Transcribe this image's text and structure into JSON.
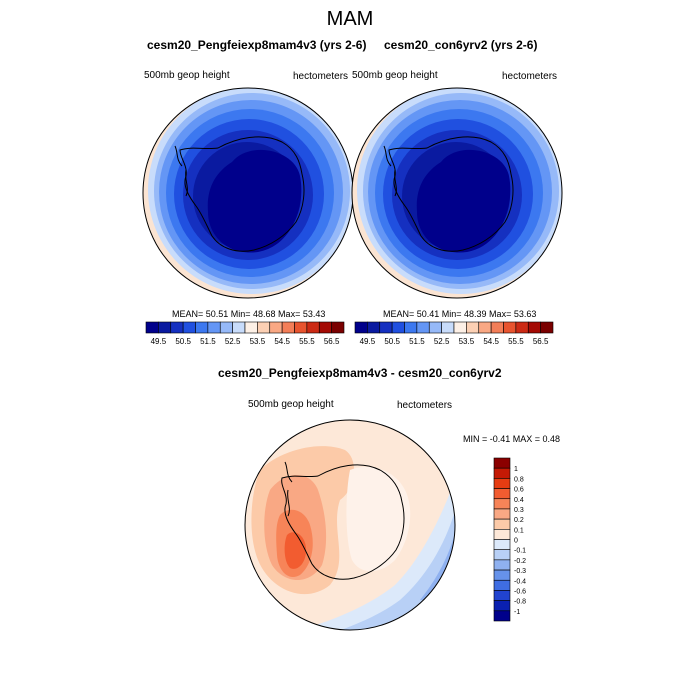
{
  "main_title": "MAM",
  "left_panel": {
    "title": "cesm20_Pengfeiexp8mam4v3 (yrs 2-6)",
    "left_label": "500mb geop height",
    "right_label": "hectometers",
    "stats": "MEAN=  50.51  Min=  48.68  Max=  53.43"
  },
  "right_panel": {
    "title": "cesm20_con6yrv2 (yrs 2-6)",
    "left_label": "500mb geop height",
    "right_label": "hectometers",
    "stats": "MEAN=  50.41  Min=  48.39  Max=  53.63"
  },
  "diff_panel": {
    "title": "cesm20_Pengfeiexp8mam4v3 - cesm20_con6yrv2",
    "left_label": "500mb geop height",
    "right_label": "hectometers",
    "stats": "MIN = -0.41 MAX =   0.48"
  },
  "horizontal_colorbar": {
    "labels": [
      "49.5",
      "50.5",
      "51.5",
      "52.5",
      "53.5",
      "54.5",
      "55.5",
      "56.5"
    ],
    "colors": [
      "#00008b",
      "#0a1aa0",
      "#1530c0",
      "#2050e0",
      "#3c78f0",
      "#6496f5",
      "#96b9f8",
      "#c8dcfb",
      "#fdf0e6",
      "#fcd0b4",
      "#f9a884",
      "#f37e58",
      "#e8542f",
      "#cc2a14",
      "#a40a04",
      "#7a0000"
    ]
  },
  "vertical_colorbar": {
    "labels": [
      "1",
      "0.8",
      "0.6",
      "0.4",
      "0.3",
      "0.2",
      "0.1",
      "0",
      "-0.1",
      "-0.2",
      "-0.3",
      "-0.4",
      "-0.6",
      "-0.8",
      "-1"
    ],
    "colors": [
      "#8b0000",
      "#c41a05",
      "#e63c12",
      "#f25c30",
      "#f78458",
      "#f9a884",
      "#fccaa8",
      "#fde8d8",
      "#dce9fa",
      "#b8d0f6",
      "#8fb1f0",
      "#6692ea",
      "#3f6de2",
      "#2143cf",
      "#0a20b0",
      "#00008b"
    ]
  }
}
